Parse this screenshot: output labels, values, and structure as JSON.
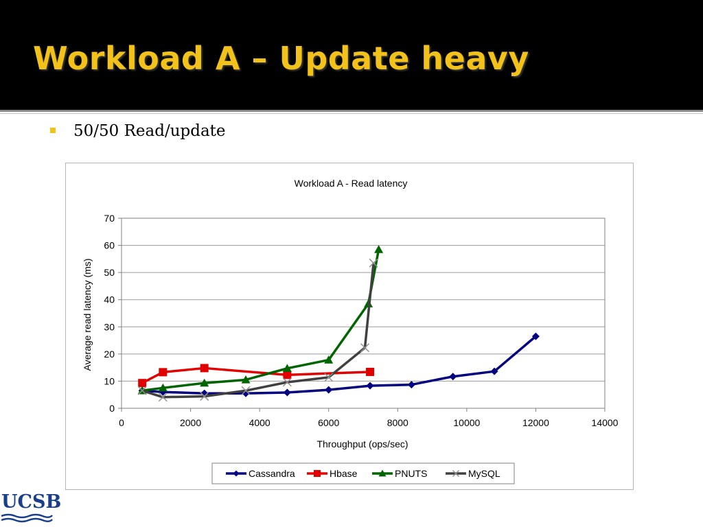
{
  "slide": {
    "title": "Workload A – Update heavy",
    "bullet": "50/50 Read/update",
    "logo_text": "UCSB"
  },
  "colors": {
    "title_band": "#000000",
    "title_text": "#f2c21b",
    "bullet": "#f2c21b",
    "logo": "#1a3f8a"
  },
  "chart_data": {
    "type": "line",
    "title": "Workload A - Read latency",
    "xlabel": "Throughput (ops/sec)",
    "ylabel": "Average read latency (ms)",
    "xlim": [
      0,
      14000
    ],
    "ylim": [
      0,
      70
    ],
    "xticks": [
      0,
      2000,
      4000,
      6000,
      8000,
      10000,
      12000,
      14000
    ],
    "yticks": [
      0,
      10,
      20,
      30,
      40,
      50,
      60,
      70
    ],
    "grid": "horizontal",
    "legend_position": "bottom",
    "series": [
      {
        "name": "Cassandra",
        "color": "#000080",
        "marker": "diamond",
        "x": [
          600,
          1200,
          2400,
          3600,
          4800,
          6000,
          7200,
          8400,
          9600,
          10800,
          12000
        ],
        "y": [
          6.5,
          6.0,
          5.5,
          5.5,
          5.8,
          6.8,
          8.3,
          8.7,
          11.7,
          13.6,
          26.5
        ]
      },
      {
        "name": "Hbase",
        "color": "#e00000",
        "marker": "square",
        "x": [
          600,
          1200,
          2400,
          4800,
          7200
        ],
        "y": [
          9.3,
          13.3,
          14.8,
          12.3,
          13.4
        ]
      },
      {
        "name": "PNUTS",
        "color": "#006400",
        "marker": "triangle",
        "x": [
          600,
          1200,
          2400,
          3600,
          4800,
          6000,
          7150,
          7450
        ],
        "y": [
          6.5,
          7.5,
          9.3,
          10.5,
          14.7,
          17.8,
          38.5,
          58.5
        ]
      },
      {
        "name": "MySQL",
        "color": "#404040",
        "marker": "x",
        "x": [
          600,
          1200,
          2400,
          3600,
          4800,
          6000,
          7050,
          7300
        ],
        "y": [
          6.5,
          4.1,
          4.4,
          6.5,
          9.6,
          11.4,
          22.3,
          53.5
        ]
      }
    ]
  }
}
